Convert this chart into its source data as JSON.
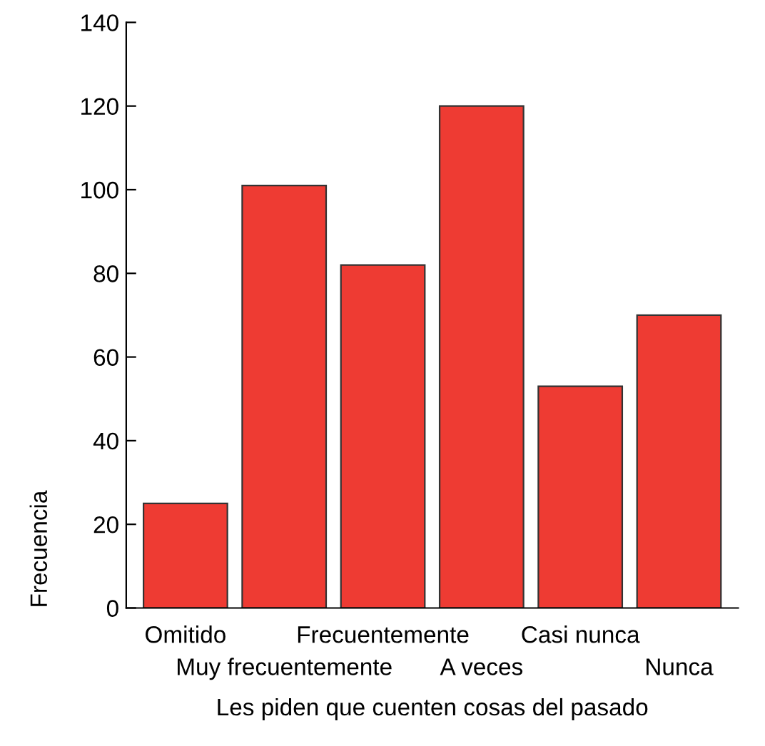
{
  "chart_data": {
    "type": "bar",
    "categories": [
      "Omitido",
      "Muy frecuentemente",
      "Frecuentemente",
      "A veces",
      "Casi nunca",
      "Nunca"
    ],
    "values": [
      25,
      101,
      82,
      120,
      53,
      70
    ],
    "color": "#ee3b33",
    "xlabel": "Les piden que cuenten cosas del pasado",
    "ylabel": "Frecuencia",
    "ylim": [
      0,
      140
    ],
    "yticks": [
      0,
      20,
      40,
      60,
      80,
      100,
      120,
      140
    ],
    "grid": false,
    "legend": false
  }
}
